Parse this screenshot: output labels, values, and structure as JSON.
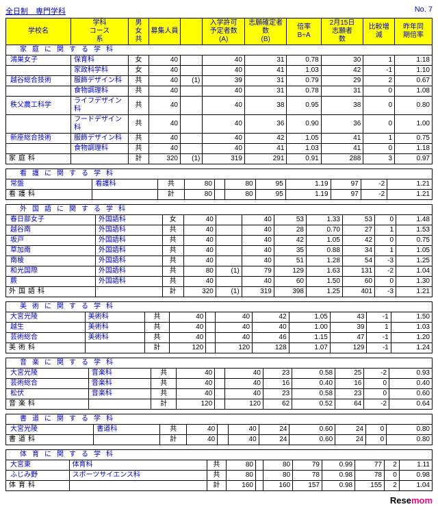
{
  "header": {
    "left": "全日制　専門学科",
    "right": "No. 7"
  },
  "cols": [
    "学校名",
    "学科\nコース\n系",
    "男\n女\n共",
    "募集人員",
    "",
    "入学許可\n予定者数\n(A)",
    "志願確定者\n数\n(B)",
    "倍率\nB÷A",
    "2月15日\n志願者\n数",
    "比較増\n減",
    "昨年同\n期倍率"
  ],
  "sections": [
    {
      "title": "家庭に関する学科",
      "rows": [
        [
          "鴻巣女子",
          "保育科",
          "女",
          "40",
          "",
          "40",
          "31",
          "0.78",
          "30",
          "1",
          "1.18"
        ],
        [
          "",
          "家政科学科",
          "女",
          "40",
          "",
          "40",
          "41",
          "1.03",
          "42",
          "-1",
          "1.10"
        ],
        [
          "越谷総合技術",
          "服飾デザイン科",
          "共",
          "40",
          "(1)",
          "39",
          "31",
          "0.79",
          "29",
          "2",
          "0.67"
        ],
        [
          "",
          "食物調理科",
          "共",
          "40",
          "",
          "40",
          "31",
          "0.78",
          "31",
          "0",
          "1.08"
        ],
        [
          "秩父農工科学",
          "ライフデザイン科",
          "共",
          "40",
          "",
          "40",
          "38",
          "0.95",
          "38",
          "0",
          "0.80"
        ],
        [
          "",
          "フードデザイン科",
          "共",
          "40",
          "",
          "40",
          "36",
          "0.90",
          "36",
          "0",
          "1.00"
        ],
        [
          "新座総合技術",
          "服飾デザイン科",
          "共",
          "40",
          "",
          "40",
          "42",
          "1.05",
          "41",
          "1",
          "0.75"
        ],
        [
          "",
          "食物調理科",
          "共",
          "40",
          "",
          "40",
          "41",
          "1.03",
          "41",
          "0",
          "1.18"
        ]
      ],
      "total": [
        "家庭科",
        "",
        "計",
        "320",
        "(1)",
        "319",
        "291",
        "0.91",
        "288",
        "3",
        "0.97"
      ]
    },
    {
      "title": "看護に関する学科",
      "rows": [
        [
          "常盤",
          "看護科",
          "共",
          "80",
          "",
          "80",
          "95",
          "1.19",
          "97",
          "-2",
          "1.21"
        ]
      ],
      "total": [
        "看護科",
        "",
        "計",
        "80",
        "",
        "80",
        "95",
        "1.19",
        "97",
        "-2",
        "1.21"
      ]
    },
    {
      "title": "外国語に関する学科",
      "rows": [
        [
          "春日部女子",
          "外国語科",
          "女",
          "40",
          "",
          "40",
          "53",
          "1.33",
          "53",
          "0",
          "1.48"
        ],
        [
          "越谷南",
          "外国語科",
          "共",
          "40",
          "",
          "40",
          "28",
          "0.70",
          "27",
          "1",
          "1.53"
        ],
        [
          "坂戸",
          "外国語科",
          "共",
          "40",
          "",
          "40",
          "42",
          "1.05",
          "42",
          "0",
          "0.75"
        ],
        [
          "草加南",
          "外国語科",
          "共",
          "40",
          "",
          "40",
          "35",
          "0.88",
          "34",
          "1",
          "1.05"
        ],
        [
          "南稜",
          "外国語科",
          "共",
          "40",
          "",
          "40",
          "51",
          "1.28",
          "54",
          "-3",
          "1.25"
        ],
        [
          "和光国際",
          "外国語科",
          "共",
          "80",
          "(1)",
          "79",
          "129",
          "1.63",
          "131",
          "-2",
          "1.04"
        ],
        [
          "蕨",
          "外国語科",
          "共",
          "40",
          "",
          "40",
          "60",
          "1.50",
          "60",
          "0",
          "1.30"
        ]
      ],
      "total": [
        "外国語科",
        "",
        "計",
        "320",
        "(1)",
        "319",
        "398",
        "1.25",
        "401",
        "-3",
        "1.21"
      ]
    },
    {
      "title": "美術に関する学科",
      "rows": [
        [
          "大宮光陵",
          "美術科",
          "共",
          "40",
          "",
          "40",
          "42",
          "1.05",
          "43",
          "-1",
          "1.50"
        ],
        [
          "越生",
          "美術科",
          "共",
          "40",
          "",
          "40",
          "40",
          "1.00",
          "39",
          "1",
          "1.03"
        ],
        [
          "芸術総合",
          "美術科",
          "共",
          "40",
          "",
          "40",
          "46",
          "1.15",
          "47",
          "-1",
          "1.20"
        ]
      ],
      "total": [
        "美術科",
        "",
        "計",
        "120",
        "",
        "120",
        "128",
        "1.07",
        "129",
        "-1",
        "1.24"
      ]
    },
    {
      "title": "音楽に関する学科",
      "rows": [
        [
          "大宮光陵",
          "音楽科",
          "共",
          "40",
          "",
          "40",
          "23",
          "0.58",
          "25",
          "-2",
          "0.93"
        ],
        [
          "芸術総合",
          "音楽科",
          "共",
          "40",
          "",
          "40",
          "16",
          "0.40",
          "16",
          "0",
          "0.40"
        ],
        [
          "松伏",
          "音楽科",
          "共",
          "40",
          "",
          "40",
          "23",
          "0.58",
          "23",
          "0",
          "0.60"
        ]
      ],
      "total": [
        "音楽科",
        "",
        "計",
        "120",
        "",
        "120",
        "62",
        "0.52",
        "64",
        "-2",
        "0.64"
      ]
    },
    {
      "title": "書道に関する学科",
      "rows": [
        [
          "大宮光陵",
          "書道科",
          "共",
          "40",
          "",
          "40",
          "24",
          "0.60",
          "24",
          "0",
          "0.80"
        ]
      ],
      "total": [
        "書道科",
        "",
        "計",
        "40",
        "",
        "40",
        "24",
        "0.60",
        "24",
        "0",
        "0.80"
      ]
    },
    {
      "title": "体育に関する学科",
      "rows": [
        [
          "大宮東",
          "体育科",
          "共",
          "80",
          "",
          "80",
          "79",
          "0.99",
          "77",
          "2",
          "1.11"
        ],
        [
          "ふじみ野",
          "スポーツサイエンス科",
          "共",
          "80",
          "",
          "80",
          "78",
          "0.98",
          "78",
          "0",
          "0.98"
        ]
      ],
      "total": [
        "体育科",
        "",
        "計",
        "160",
        "",
        "160",
        "157",
        "0.98",
        "155",
        "2",
        "1.04"
      ]
    }
  ],
  "brand": {
    "a": "Rese",
    "b": "mom"
  }
}
